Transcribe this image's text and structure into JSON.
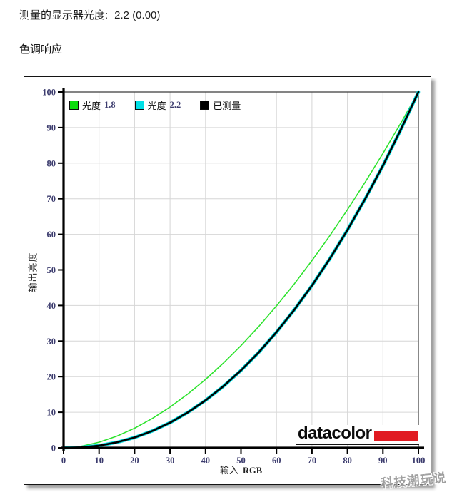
{
  "header": {
    "measured_label": "测量的显示器光度:",
    "measured_value": "2.2 (0.00)",
    "section_title": "色调响应"
  },
  "watermark": "科技潮玩说",
  "logo": {
    "text": "datacolor",
    "bar_color": "#e11b22"
  },
  "chart_data": {
    "type": "line",
    "title": "",
    "xlabel": "输入",
    "xlabel_unit": "RGB",
    "ylabel": "输出亮度",
    "xlim": [
      0,
      100
    ],
    "ylim": [
      0,
      100
    ],
    "xticks": [
      0,
      10,
      20,
      30,
      40,
      50,
      60,
      70,
      80,
      90,
      100
    ],
    "yticks": [
      0,
      10,
      20,
      30,
      40,
      50,
      60,
      70,
      80,
      90,
      100
    ],
    "grid": true,
    "grid_color": "#d6d6d6",
    "legend_position": "top-inside",
    "x": [
      0,
      5,
      10,
      15,
      20,
      25,
      30,
      35,
      40,
      45,
      50,
      55,
      60,
      65,
      70,
      75,
      80,
      85,
      90,
      95,
      100
    ],
    "series": [
      {
        "name": "光度 1.8",
        "gamma": 1.8,
        "color": "#2ee32e",
        "width": 1.6,
        "values": [
          0,
          0.45,
          1.59,
          3.29,
          5.52,
          8.25,
          11.45,
          15.11,
          19.22,
          23.76,
          28.72,
          34.09,
          39.87,
          46.05,
          52.62,
          59.58,
          66.92,
          74.64,
          82.72,
          91.18,
          100
        ]
      },
      {
        "name": "光度 2.2",
        "gamma": 2.2,
        "color": "#00d8dc",
        "width": 4.6,
        "values": [
          0,
          0.14,
          0.63,
          1.54,
          2.9,
          4.74,
          7.07,
          9.93,
          13.32,
          17.26,
          21.76,
          26.84,
          32.51,
          38.76,
          45.62,
          53.11,
          61.21,
          69.95,
          79.3,
          89.32,
          100
        ]
      },
      {
        "name": "已测量",
        "gamma": 2.2,
        "color": "#000000",
        "width": 2.6,
        "values": [
          0,
          0.14,
          0.63,
          1.54,
          2.9,
          4.74,
          7.07,
          9.93,
          13.32,
          17.26,
          21.76,
          26.84,
          32.51,
          38.76,
          45.62,
          53.11,
          61.21,
          69.95,
          79.3,
          89.32,
          100
        ]
      }
    ],
    "legend": [
      {
        "text": "光度",
        "num": "1.8",
        "swatch": "#0ddd0d"
      },
      {
        "text": "光度",
        "num": "2.2",
        "swatch": "#00e0e6"
      },
      {
        "text": "已测量",
        "num": "",
        "swatch": "#000000"
      }
    ]
  }
}
